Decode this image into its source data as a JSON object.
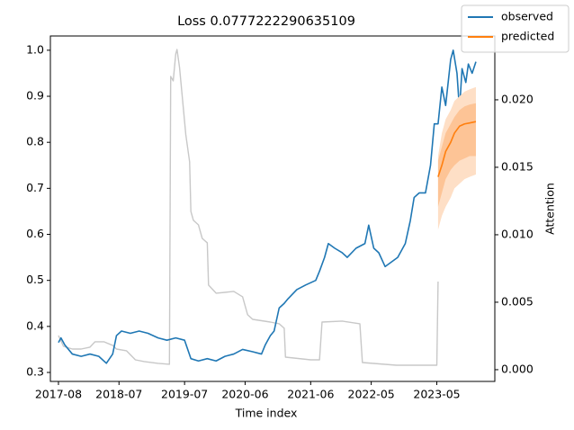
{
  "chart_data": {
    "type": "line",
    "title": "Loss 0.0777222290635109",
    "xlabel": "Time index",
    "y2label": "Attention",
    "xlim": [
      -6.4,
      346
    ],
    "ylim": [
      0.2805,
      1.031
    ],
    "y2lim": [
      -0.00087,
      0.02473
    ],
    "xticks": [
      {
        "value": 0,
        "label": "2017-08"
      },
      {
        "value": 48,
        "label": "2018-07"
      },
      {
        "value": 100,
        "label": "2019-07"
      },
      {
        "value": 148,
        "label": "2020-06"
      },
      {
        "value": 200,
        "label": "2021-06"
      },
      {
        "value": 248,
        "label": "2022-05"
      },
      {
        "value": 300,
        "label": "2023-05"
      }
    ],
    "yticks": [
      0.3,
      0.4,
      0.5,
      0.6,
      0.7,
      0.8,
      0.9,
      {
        "value": 1,
        "label": "1.0"
      }
    ],
    "y2ticks": [
      {
        "value": 0,
        "label": "0.000"
      },
      {
        "value": 0.005,
        "label": "0.005"
      },
      {
        "value": 0.01,
        "label": "0.010"
      },
      {
        "value": 0.015,
        "label": "0.015"
      },
      {
        "value": 0.02,
        "label": "0.020"
      }
    ],
    "legend": "upper right",
    "series": [
      {
        "axis": "y2",
        "color": "#c8c8c8",
        "x": [
          0,
          4,
          11,
          18,
          25,
          29,
          36,
          43,
          46,
          54,
          61,
          68,
          79,
          88,
          89,
          91,
          93,
          94,
          96,
          99,
          101,
          104,
          105,
          107,
          111,
          114,
          118,
          119,
          125,
          132,
          139,
          146,
          150,
          154,
          168,
          175,
          179,
          180,
          200,
          207,
          209,
          225,
          239,
          241,
          268,
          300,
          301
        ],
        "values": [
          0.00253,
          0.00173,
          0.00153,
          0.00153,
          0.00167,
          0.00207,
          0.00207,
          0.0018,
          0.00153,
          0.0014,
          0.00073,
          0.0006,
          0.00047,
          0.0004,
          0.02173,
          0.0214,
          0.0234,
          0.02373,
          0.0224,
          0.0194,
          0.0174,
          0.0154,
          0.01173,
          0.01107,
          0.01073,
          0.00973,
          0.0094,
          0.00627,
          0.00567,
          0.00573,
          0.0058,
          0.0054,
          0.00407,
          0.00373,
          0.00353,
          0.0034,
          0.00307,
          0.00093,
          0.00073,
          0.00073,
          0.00353,
          0.0036,
          0.0034,
          0.00053,
          0.00033,
          0.00033,
          0.00653
        ]
      },
      {
        "name": "observed",
        "color": "#1f77b4",
        "x": [
          0,
          2,
          5,
          11,
          18,
          25,
          32,
          38,
          43,
          46,
          50,
          57,
          64,
          71,
          79,
          86,
          93,
          100,
          105,
          111,
          118,
          125,
          132,
          139,
          146,
          154,
          161,
          164,
          168,
          171,
          175,
          179,
          182,
          189,
          196,
          204,
          207,
          211,
          214,
          219,
          225,
          229,
          236,
          243,
          246,
          250,
          254,
          259,
          264,
          269,
          275,
          279,
          282,
          286,
          291,
          295,
          298,
          301,
          304,
          307,
          311,
          313,
          316,
          318,
          320,
          323,
          325,
          328,
          331
        ],
        "values": [
          0.365,
          0.375,
          0.36,
          0.34,
          0.335,
          0.34,
          0.335,
          0.32,
          0.34,
          0.38,
          0.39,
          0.385,
          0.39,
          0.385,
          0.375,
          0.37,
          0.375,
          0.37,
          0.33,
          0.325,
          0.33,
          0.325,
          0.335,
          0.34,
          0.35,
          0.345,
          0.34,
          0.36,
          0.38,
          0.39,
          0.44,
          0.45,
          0.46,
          0.48,
          0.49,
          0.5,
          0.52,
          0.55,
          0.58,
          0.57,
          0.56,
          0.55,
          0.57,
          0.58,
          0.62,
          0.57,
          0.56,
          0.53,
          0.54,
          0.55,
          0.58,
          0.63,
          0.68,
          0.69,
          0.69,
          0.75,
          0.84,
          0.84,
          0.92,
          0.88,
          0.98,
          1.0,
          0.95,
          0.87,
          0.96,
          0.93,
          0.97,
          0.95,
          0.975
        ]
      },
      {
        "name": "predicted",
        "color": "#ff7f0e",
        "x": [
          301,
          304,
          307,
          311,
          314,
          318,
          322,
          326,
          331
        ],
        "values": [
          0.725,
          0.75,
          0.78,
          0.8,
          0.82,
          0.835,
          0.84,
          0.842,
          0.845
        ],
        "bands": [
          {
            "color": "#fedfc6",
            "lower": [
              0.61,
              0.64,
              0.66,
              0.68,
              0.7,
              0.71,
              0.72,
              0.725,
              0.73
            ],
            "upper": [
              0.77,
              0.82,
              0.85,
              0.87,
              0.89,
              0.9,
              0.91,
              0.915,
              0.92
            ]
          },
          {
            "color": "#fdc496",
            "lower": [
              0.66,
              0.69,
              0.72,
              0.74,
              0.75,
              0.76,
              0.765,
              0.77,
              0.77
            ],
            "upper": [
              0.76,
              0.79,
              0.82,
              0.84,
              0.855,
              0.87,
              0.878,
              0.882,
              0.885
            ]
          }
        ]
      }
    ]
  }
}
